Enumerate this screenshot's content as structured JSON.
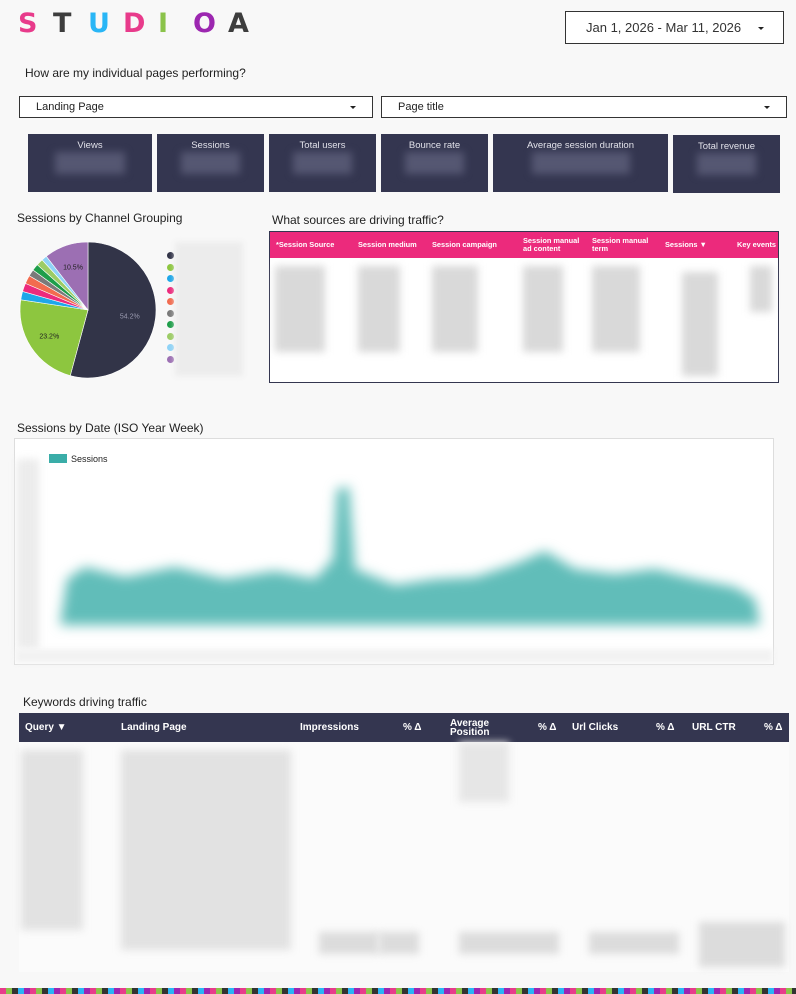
{
  "logo": {
    "letters": [
      "S",
      "T",
      "U",
      "D",
      "I",
      "O",
      "A"
    ],
    "colors": [
      "#e83b8b",
      "#3d3d3d",
      "#29b6f6",
      "#e83b8b",
      "#8bc34a",
      "#9c27b0",
      "#3d3d3d"
    ]
  },
  "date_range": {
    "value": "Jan 1, 2026 - Mar 11, 2026"
  },
  "pages_heading": "How are my individual pages performing?",
  "filters": {
    "landing_page": "Landing Page",
    "page_title": "Page title"
  },
  "scorecards": [
    {
      "label": "Views"
    },
    {
      "label": "Sessions"
    },
    {
      "label": "Total users"
    },
    {
      "label": "Bounce rate"
    },
    {
      "label": "Average session duration"
    },
    {
      "label": "Total revenue"
    }
  ],
  "pie": {
    "title": "Sessions by Channel Grouping",
    "chart_data": {
      "type": "pie",
      "slices": [
        {
          "value": 54.2,
          "color": "#323448",
          "label": "54.2%"
        },
        {
          "value": 23.2,
          "color": "#8dc63f",
          "label": "23.2%"
        },
        {
          "value": 2.0,
          "color": "#1ea7e9",
          "label": ""
        },
        {
          "value": 2.0,
          "color": "#ec2a7c",
          "label": ""
        },
        {
          "value": 2.0,
          "color": "#f26b4f",
          "label": ""
        },
        {
          "value": 1.6,
          "color": "#7a7a7a",
          "label": ""
        },
        {
          "value": 1.6,
          "color": "#1e9e4a",
          "label": ""
        },
        {
          "value": 1.6,
          "color": "#9ccc65",
          "label": ""
        },
        {
          "value": 1.3,
          "color": "#8fd3f7",
          "label": ""
        },
        {
          "value": 10.5,
          "color": "#9c6fb3",
          "label": "10.5%"
        }
      ]
    }
  },
  "sources": {
    "title": "What sources are driving traffic?",
    "columns": [
      "*Session Source",
      "Session medium",
      "Session campaign",
      "Session manual ad content",
      "Session manual term",
      "Sessions ▼",
      "Key events"
    ]
  },
  "timeseries": {
    "title": "Sessions by Date (ISO Year Week)",
    "legend": "Sessions",
    "color": "#3aada8"
  },
  "keywords": {
    "title": "Keywords driving traffic",
    "columns": [
      "Query ▼",
      "Landing Page",
      "Impressions",
      "% Δ",
      "Average Position",
      "% Δ",
      "Url Clicks",
      "% Δ",
      "URL CTR",
      "% Δ"
    ]
  },
  "colors": {
    "navy": "#343650",
    "pink": "#ec2a7c"
  }
}
